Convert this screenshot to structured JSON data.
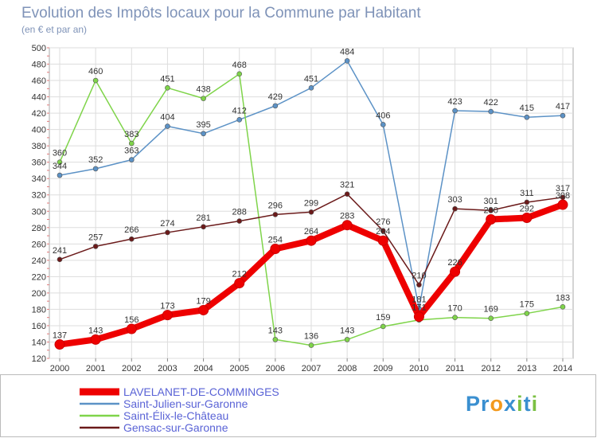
{
  "chart_data": {
    "type": "line",
    "title": "Evolution des Impôts locaux pour la Commune par Habitant",
    "subtitle": "(en € et par an)",
    "x": [
      "2000",
      "2001",
      "2002",
      "2003",
      "2004",
      "2005",
      "2006",
      "2007",
      "2008",
      "2009",
      "2010",
      "2011",
      "2012",
      "2013",
      "2014"
    ],
    "ylim": [
      120,
      500
    ],
    "yticks": [
      120,
      140,
      160,
      180,
      200,
      220,
      240,
      260,
      280,
      300,
      320,
      340,
      360,
      380,
      400,
      420,
      440,
      460,
      480,
      500
    ],
    "grid": true,
    "legend_position": "bottom-left",
    "series": [
      {
        "name": "LAVELANET-DE-COMMINGES",
        "color": "#ee0000",
        "values": [
          137,
          143,
          156,
          173,
          179,
          212,
          254,
          264,
          283,
          264,
          171,
          226,
          290,
          292,
          308
        ],
        "labels": [
          "137",
          "143",
          "156",
          "173",
          "179",
          "212",
          "254",
          "264",
          "283",
          "264",
          "171",
          "226",
          "290",
          "292",
          "308"
        ]
      },
      {
        "name": "Saint-Julien-sur-Garonne",
        "color": "#5c92c6",
        "values": [
          344,
          352,
          363,
          404,
          395,
          412,
          429,
          451,
          484,
          406,
          181,
          423,
          422,
          415,
          417
        ],
        "labels": [
          "344",
          "352",
          "363",
          "404",
          "395",
          "412",
          "429",
          "451",
          "484",
          "406",
          "181",
          "423",
          "422",
          "415",
          "417"
        ]
      },
      {
        "name": "Saint-Élix-le-Château",
        "color": "#7fd44a",
        "values": [
          360,
          460,
          383,
          451,
          438,
          468,
          143,
          136,
          143,
          159,
          167,
          170,
          169,
          175,
          183
        ],
        "labels": [
          "360",
          "460",
          "383",
          "451",
          "438",
          "468",
          "143",
          "136",
          "143",
          "159",
          "",
          "170",
          "169",
          "175",
          "183"
        ]
      },
      {
        "name": "Gensac-sur-Garonne",
        "color": "#6b1a1a",
        "values": [
          241,
          257,
          266,
          274,
          281,
          288,
          296,
          299,
          321,
          276,
          210,
          303,
          301,
          311,
          317
        ],
        "labels": [
          "241",
          "257",
          "266",
          "274",
          "281",
          "288",
          "296",
          "299",
          "321",
          "276",
          "210",
          "303",
          "301",
          "311",
          "317"
        ]
      }
    ]
  },
  "brand": {
    "text": "Proxiti"
  }
}
